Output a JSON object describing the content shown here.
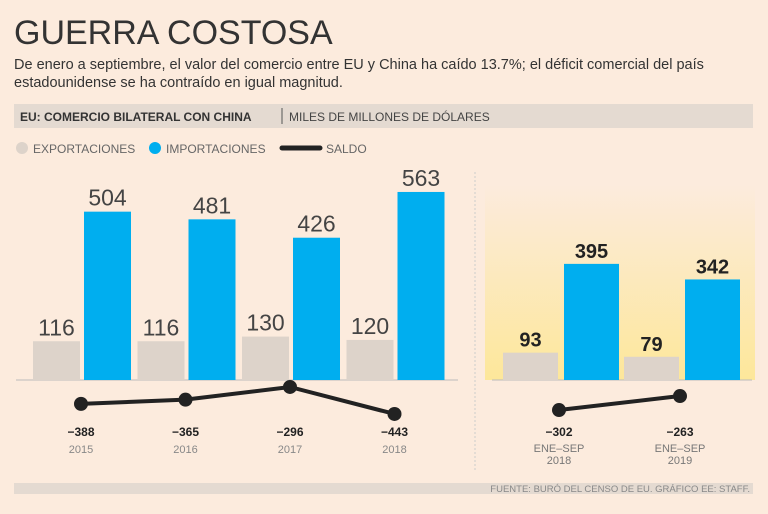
{
  "header": {
    "title": "GUERRA COSTOSA",
    "subtitle": "De enero a septiembre, el valor del comercio entre EU y China ha caído 13.7%; el déficit comercial del país estadounidense se ha contraído en igual magnitud.",
    "band_title": "EU: COMERCIO BILATERAL CON CHINA",
    "band_unit": "MILES DE MILLONES DE DÓLARES"
  },
  "source": "FUENTE: BURÓ DEL CENSO DE EU. GRÁFICO EE: STAFF.",
  "chart_data": {
    "type": "bar",
    "series": [
      {
        "name": "EXPORTACIONES",
        "color": "#ddd3ca"
      },
      {
        "name": "IMPORTACIONES",
        "color": "#00aeef"
      },
      {
        "name": "SALDO",
        "color": "#222222"
      }
    ],
    "panels": [
      {
        "categories": [
          "2015",
          "2016",
          "2017",
          "2018"
        ],
        "values": [
          [
            116,
            116,
            130,
            120
          ],
          [
            504,
            481,
            426,
            563
          ],
          [
            -388,
            -365,
            -296,
            -443
          ]
        ],
        "balance_labels": [
          "−388",
          "−365",
          "−296",
          "−443"
        ]
      },
      {
        "categories": [
          "ENE–SEP 2018",
          "ENE–SEP 2019"
        ],
        "values": [
          [
            93,
            79
          ],
          [
            395,
            342
          ],
          [
            -302,
            -263
          ]
        ],
        "balance_labels": [
          "−302",
          "−263"
        ]
      }
    ]
  }
}
